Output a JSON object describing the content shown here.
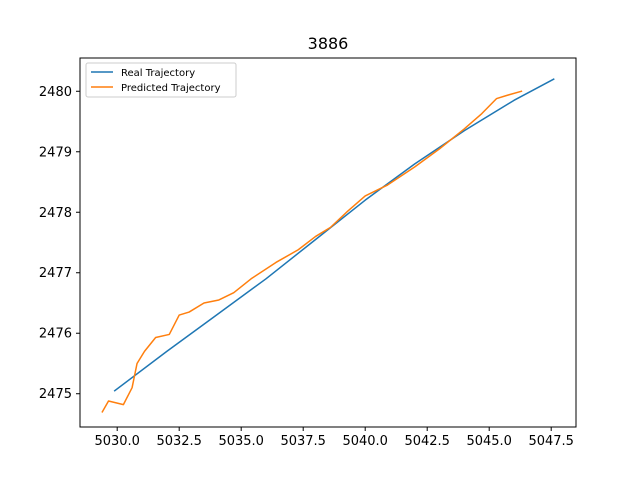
{
  "chart_data": {
    "type": "line",
    "title": "3886",
    "xlabel": "",
    "ylabel": "",
    "xlim": [
      5028.5,
      5048.5
    ],
    "ylim": [
      2474.45,
      2480.55
    ],
    "xticks": [
      5030.0,
      5032.5,
      5035.0,
      5037.5,
      5040.0,
      5042.5,
      5045.0,
      5047.5
    ],
    "xtick_labels": [
      "5030.0",
      "5032.5",
      "5035.0",
      "5037.5",
      "5040.0",
      "5042.5",
      "5045.0",
      "5047.5"
    ],
    "yticks": [
      2475,
      2476,
      2477,
      2478,
      2479,
      2480
    ],
    "ytick_labels": [
      "2475",
      "2476",
      "2477",
      "2478",
      "2479",
      "2480"
    ],
    "grid": false,
    "legend_position": "top-left",
    "series": [
      {
        "name": "Real Trajectory",
        "color": "#1f77b4",
        "x": [
          5029.9,
          5032.0,
          5034.0,
          5036.0,
          5038.0,
          5040.0,
          5042.0,
          5044.0,
          5046.0,
          5047.6
        ],
        "y": [
          2475.05,
          2475.7,
          2476.3,
          2476.9,
          2477.55,
          2478.2,
          2478.8,
          2479.35,
          2479.85,
          2480.2
        ]
      },
      {
        "name": "Predicted Trajectory",
        "color": "#ff7f0e",
        "x": [
          5029.4,
          5029.65,
          5030.25,
          5030.6,
          5030.8,
          5031.1,
          5031.55,
          5032.1,
          5032.5,
          5032.9,
          5033.5,
          5034.1,
          5034.7,
          5035.4,
          5036.4,
          5037.3,
          5038.0,
          5038.6,
          5039.3,
          5040.0,
          5040.9,
          5042.0,
          5043.0,
          5044.0,
          5044.7,
          5045.3,
          5045.7,
          5046.3
        ],
        "y": [
          2474.7,
          2474.88,
          2474.82,
          2475.1,
          2475.5,
          2475.7,
          2475.93,
          2475.98,
          2476.3,
          2476.35,
          2476.5,
          2476.55,
          2476.67,
          2476.9,
          2477.17,
          2477.38,
          2477.6,
          2477.75,
          2478.02,
          2478.27,
          2478.45,
          2478.75,
          2479.05,
          2479.38,
          2479.63,
          2479.88,
          2479.93,
          2480.0
        ]
      }
    ]
  }
}
